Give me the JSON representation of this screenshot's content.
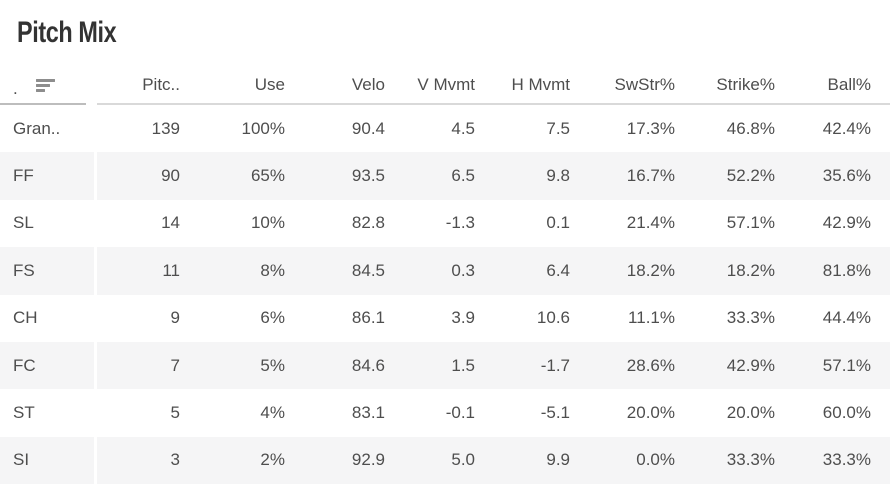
{
  "title": "Pitch Mix",
  "table": {
    "sort_header": {
      "prefix": ".",
      "icon": "sort-descending-bars-icon"
    },
    "columns": [
      "Pitc..",
      "Use",
      "Velo",
      "V Mvmt",
      "H Mvmt",
      "SwStr%",
      "Strike%",
      "Ball%"
    ],
    "rows": [
      {
        "label": "Gran..",
        "values": [
          "139",
          "100%",
          "90.4",
          "4.5",
          "7.5",
          "17.3%",
          "46.8%",
          "42.4%"
        ]
      },
      {
        "label": "FF",
        "values": [
          "90",
          "65%",
          "93.5",
          "6.5",
          "9.8",
          "16.7%",
          "52.2%",
          "35.6%"
        ]
      },
      {
        "label": "SL",
        "values": [
          "14",
          "10%",
          "82.8",
          "-1.3",
          "0.1",
          "21.4%",
          "57.1%",
          "42.9%"
        ]
      },
      {
        "label": "FS",
        "values": [
          "11",
          "8%",
          "84.5",
          "0.3",
          "6.4",
          "18.2%",
          "18.2%",
          "81.8%"
        ]
      },
      {
        "label": "CH",
        "values": [
          "9",
          "6%",
          "86.1",
          "3.9",
          "10.6",
          "11.1%",
          "33.3%",
          "44.4%"
        ]
      },
      {
        "label": "FC",
        "values": [
          "7",
          "5%",
          "84.6",
          "1.5",
          "-1.7",
          "28.6%",
          "42.9%",
          "57.1%"
        ]
      },
      {
        "label": "ST",
        "values": [
          "5",
          "4%",
          "83.1",
          "-0.1",
          "-5.1",
          "20.0%",
          "20.0%",
          "60.0%"
        ]
      },
      {
        "label": "SI",
        "values": [
          "3",
          "2%",
          "92.9",
          "5.0",
          "9.9",
          "0.0%",
          "33.3%",
          "33.3%"
        ]
      }
    ]
  },
  "colors": {
    "stripe": "#f5f5f6",
    "text": "#4e4e4e",
    "title": "#333333",
    "header_border": "#d9d9d9",
    "header_border_rowheader": "#bdbdbd",
    "sort_icon": "#8d8d8d"
  }
}
